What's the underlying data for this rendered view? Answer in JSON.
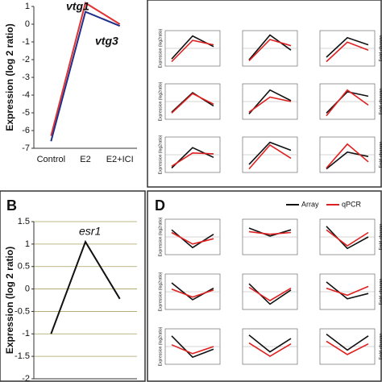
{
  "chart_data": [
    {
      "type": "line",
      "y_label": "Expression (log 2 ratio)",
      "categories": [
        "Control",
        "E2",
        "E2+ICI"
      ],
      "series": [
        {
          "name": "vtg1",
          "color": "#e03333",
          "values": [
            -6.3,
            1.2,
            0
          ]
        },
        {
          "name": "vtg3",
          "color": "#1f2f8a",
          "values": [
            -6.6,
            0.7,
            -0.1
          ]
        }
      ],
      "ylim": [
        -7,
        1
      ],
      "yticks": [
        1,
        0,
        -1,
        -2,
        -3,
        -4,
        -5,
        -6,
        -7
      ]
    },
    {
      "type": "line",
      "panel": "B",
      "y_label": "Expression  (log 2 ratio)",
      "series": [
        {
          "name": "esr1",
          "color": "#111111",
          "values": [
            -1,
            1.05,
            -0.22
          ]
        }
      ],
      "ylim": [
        -2,
        1.5
      ],
      "yticks": [
        1.5,
        1,
        0.5,
        0,
        -0.5,
        -1,
        -1.5,
        -2
      ],
      "grid": true
    },
    {
      "type": "line-grid",
      "y_label": "Expression (log2ratio)",
      "y2_label": "Fold change",
      "series": [
        {
          "name": "Array",
          "color": "#111111"
        },
        {
          "name": "qPCR",
          "color": "#e02020"
        }
      ],
      "ylim": [
        -2,
        2
      ],
      "charts": [
        {
          "values": [
            [
              -1.2,
              1.4,
              0.2
            ],
            [
              -1.5,
              0.9,
              0.4
            ]
          ]
        },
        {
          "values": [
            [
              -1.3,
              1.5,
              -0.2
            ],
            [
              -1.4,
              1.0,
              0.3
            ]
          ]
        },
        {
          "values": [
            [
              -1.0,
              1.2,
              0.4
            ],
            [
              -1.5,
              0.7,
              -0.2
            ]
          ]
        },
        {
          "values": [
            [
              -1.2,
              1.0,
              -0.5
            ],
            [
              -1.3,
              0.9,
              -0.3
            ]
          ]
        },
        {
          "values": [
            [
              -1.4,
              1.3,
              0.1
            ],
            [
              -1.2,
              0.5,
              0.0
            ]
          ]
        },
        {
          "values": [
            [
              -1.3,
              1.1,
              0.6
            ],
            [
              -1.6,
              1.3,
              -0.4
            ]
          ]
        },
        {
          "values": [
            [
              -1.5,
              0.8,
              -0.3
            ],
            [
              -1.3,
              0.2,
              0.1
            ]
          ]
        },
        {
          "values": [
            [
              -1.1,
              1.4,
              0.5
            ],
            [
              -1.6,
              1.1,
              -0.4
            ]
          ]
        },
        {
          "values": [
            [
              -1.6,
              0.3,
              -0.2
            ],
            [
              -1.5,
              1.2,
              -0.8
            ]
          ]
        }
      ]
    },
    {
      "type": "line-grid",
      "panel": "D",
      "y_label": "Expression (log2ratio)",
      "y2_label": "Fold change",
      "series": [
        {
          "name": "Array",
          "color": "#111111"
        },
        {
          "name": "qPCR",
          "color": "#e02020"
        }
      ],
      "ylim": [
        -2,
        2
      ],
      "charts": [
        {
          "values": [
            [
              0.8,
              -1.2,
              0.3
            ],
            [
              0.5,
              -0.8,
              -0.2
            ]
          ]
        },
        {
          "values": [
            [
              1.0,
              0.1,
              0.8
            ],
            [
              0.6,
              0.3,
              0.5
            ]
          ]
        },
        {
          "values": [
            [
              1.2,
              -1.3,
              0.0
            ],
            [
              0.8,
              -1.0,
              0.5
            ]
          ]
        },
        {
          "values": [
            [
              1.0,
              -0.9,
              0.4
            ],
            [
              0.3,
              -0.6,
              0.2
            ]
          ]
        },
        {
          "values": [
            [
              0.9,
              -1.4,
              0.2
            ],
            [
              0.5,
              -1.0,
              0.4
            ]
          ]
        },
        {
          "values": [
            [
              1.1,
              -0.8,
              -0.2
            ],
            [
              0.4,
              -0.4,
              0.6
            ]
          ]
        },
        {
          "values": [
            [
              1.2,
              -1.2,
              -0.3
            ],
            [
              0.2,
              -0.8,
              0.0
            ]
          ]
        },
        {
          "values": [
            [
              1.3,
              -0.6,
              0.9
            ],
            [
              0.4,
              -1.1,
              0.3
            ]
          ]
        },
        {
          "values": [
            [
              1.4,
              -0.4,
              1.2
            ],
            [
              0.6,
              -0.9,
              0.3
            ]
          ]
        }
      ]
    }
  ]
}
